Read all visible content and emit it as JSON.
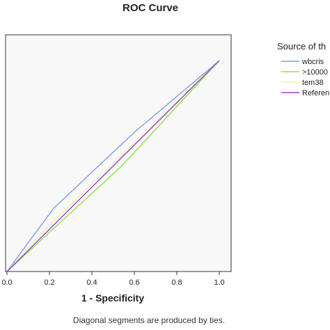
{
  "chart_data": {
    "type": "line",
    "title": "ROC Curve",
    "xlabel": "1 - Specificity",
    "ylabel": "",
    "xlim": [
      0.0,
      1.0
    ],
    "ylim": [
      0.0,
      1.0
    ],
    "x_ticks": [
      "0.0",
      "0.2",
      "0.4",
      "0.6",
      "0.8",
      "1.0"
    ],
    "legend_title": "Source of th",
    "legend_position": "right",
    "grid": false,
    "plot_background": "#f8f8f8",
    "series": [
      {
        "name": "wbcris",
        "color": "#7f9fdf",
        "points": [
          [
            0.0,
            0.0
          ],
          [
            0.22,
            0.3
          ],
          [
            0.6,
            0.66
          ],
          [
            1.0,
            1.0
          ]
        ]
      },
      {
        "name": ">10000",
        "color": "#8fe04a",
        "points": [
          [
            0.0,
            0.0
          ],
          [
            0.54,
            0.5
          ],
          [
            1.0,
            1.0
          ]
        ]
      },
      {
        "name": "tem38",
        "color": "#eaf3b0",
        "points": [
          [
            0.0,
            0.0
          ],
          [
            0.2,
            0.22
          ],
          [
            1.0,
            1.0
          ]
        ]
      },
      {
        "name": "Referen",
        "color": "#a040d0",
        "points": [
          [
            0.0,
            0.0
          ],
          [
            1.0,
            1.0
          ]
        ]
      }
    ],
    "footnote": "Diagonal segments are produced by ties."
  }
}
